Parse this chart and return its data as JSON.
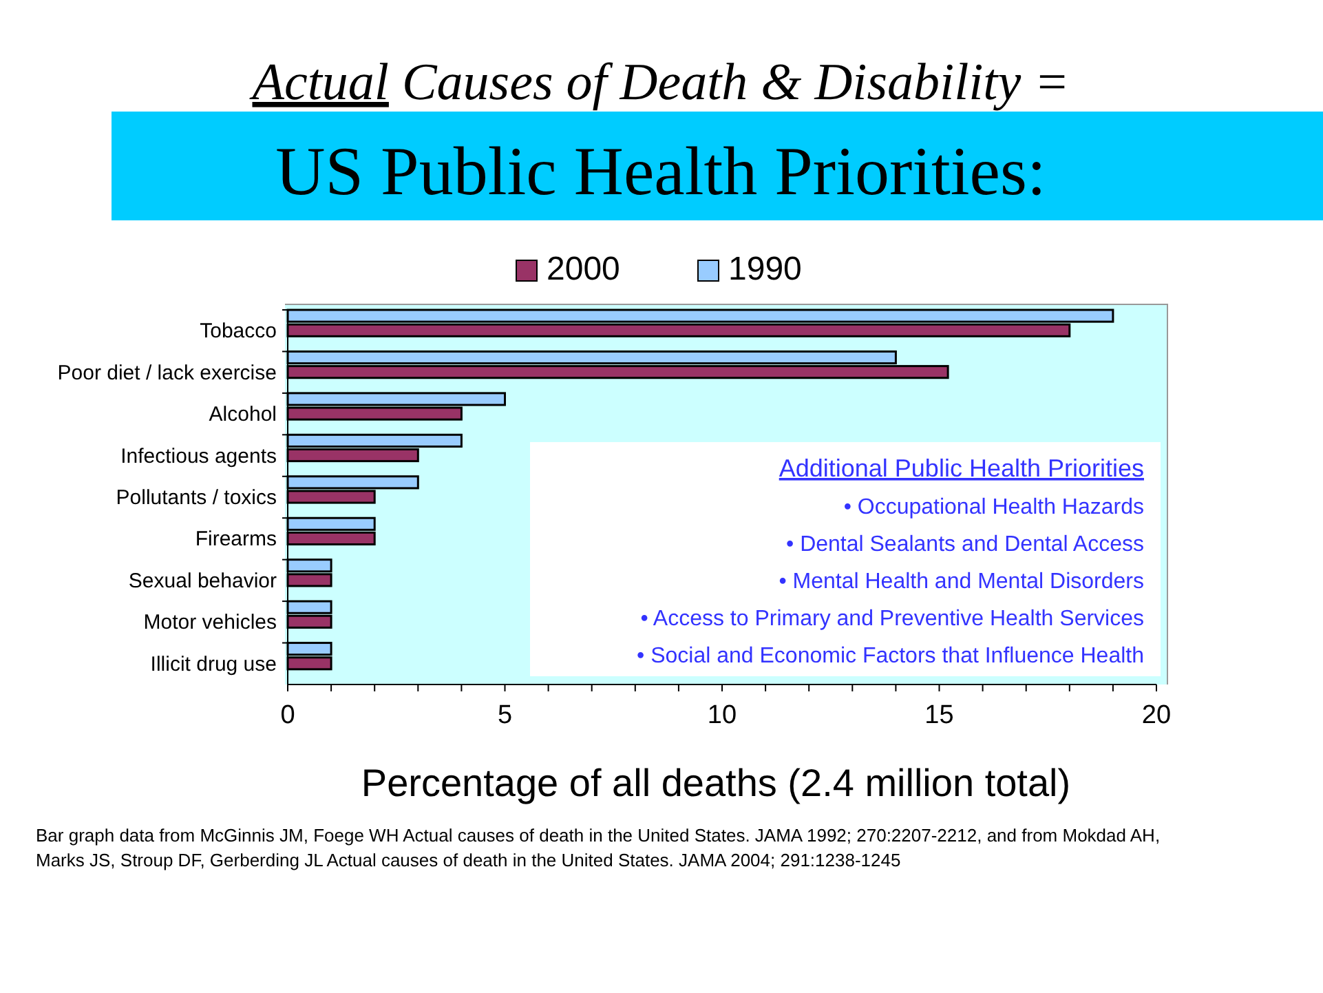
{
  "chart_data": {
    "type": "bar",
    "orientation": "horizontal",
    "title": "Actual Causes of Death & Disability =",
    "subtitle": "US Public Health Priorities:",
    "xlabel": "Percentage of all deaths (2.4 million total)",
    "categories": [
      "Tobacco",
      "Poor diet / lack exercise",
      "Alcohol",
      "Infectious agents",
      "Pollutants / toxics",
      "Firearms",
      "Sexual behavior",
      "Motor vehicles",
      "Illicit drug use"
    ],
    "series": [
      {
        "name": "2000",
        "color": "#993366",
        "values": [
          18,
          15.2,
          4,
          3,
          2,
          2,
          1,
          1,
          1
        ]
      },
      {
        "name": "1990",
        "color": "#99ccff",
        "values": [
          19,
          14,
          5,
          4,
          3,
          2,
          1,
          1,
          1
        ]
      }
    ],
    "xlim": [
      0,
      20
    ],
    "xticks": [
      0,
      {
        "value": 1,
        "label": null
      },
      {
        "value": 2,
        "label": null
      },
      {
        "value": 3,
        "label": null
      },
      {
        "value": 4,
        "label": null
      },
      5,
      {
        "value": 6,
        "label": null
      },
      {
        "value": 7,
        "label": null
      },
      {
        "value": 8,
        "label": null
      },
      {
        "value": 9,
        "label": null
      },
      10,
      {
        "value": 11,
        "label": null
      },
      {
        "value": 12,
        "label": null
      },
      {
        "value": 13,
        "label": null
      },
      {
        "value": 14,
        "label": null
      },
      15,
      {
        "value": 16,
        "label": null
      },
      {
        "value": 17,
        "label": null
      },
      {
        "value": 18,
        "label": null
      },
      {
        "value": 19,
        "label": null
      },
      20
    ],
    "legend": "top",
    "grid": false,
    "annotations": [
      "Additional Public Health Priorities",
      "• Occupational Health Hazards",
      "• Dental Sealants and Dental Access",
      "• Mental Health and Mental Disorders",
      "• Access to Primary and Preventive Health Services",
      "• Social and Economic Factors that Influence Health",
      "Bar graph data from McGinnis JM, Foege WH Actual causes of death in the United States. JAMA 1992; 270:2207-2212, and from Mokdad AH, Marks JS, Stroup DF, Gerberding JL Actual causes of death in the United States. JAMA 2004; 291:1238-1245"
    ]
  }
}
